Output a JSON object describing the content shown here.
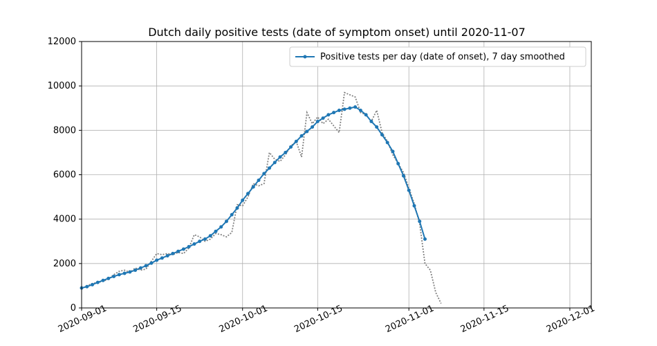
{
  "chart_data": {
    "type": "line",
    "title": "Dutch daily positive tests (date of symptom onset) until 2020-11-07",
    "x": [
      "2020-09-01",
      "2020-09-02",
      "2020-09-03",
      "2020-09-04",
      "2020-09-05",
      "2020-09-06",
      "2020-09-07",
      "2020-09-08",
      "2020-09-09",
      "2020-09-10",
      "2020-09-11",
      "2020-09-12",
      "2020-09-13",
      "2020-09-14",
      "2020-09-15",
      "2020-09-16",
      "2020-09-17",
      "2020-09-18",
      "2020-09-19",
      "2020-09-20",
      "2020-09-21",
      "2020-09-22",
      "2020-09-23",
      "2020-09-24",
      "2020-09-25",
      "2020-09-26",
      "2020-09-27",
      "2020-09-28",
      "2020-09-29",
      "2020-09-30",
      "2020-10-01",
      "2020-10-02",
      "2020-10-03",
      "2020-10-04",
      "2020-10-05",
      "2020-10-06",
      "2020-10-07",
      "2020-10-08",
      "2020-10-09",
      "2020-10-10",
      "2020-10-11",
      "2020-10-12",
      "2020-10-13",
      "2020-10-14",
      "2020-10-15",
      "2020-10-16",
      "2020-10-17",
      "2020-10-18",
      "2020-10-19",
      "2020-10-20",
      "2020-10-21",
      "2020-10-22",
      "2020-10-23",
      "2020-10-24",
      "2020-10-25",
      "2020-10-26",
      "2020-10-27",
      "2020-10-28",
      "2020-10-29",
      "2020-10-30",
      "2020-10-31",
      "2020-11-01",
      "2020-11-02",
      "2020-11-03",
      "2020-11-04",
      "2020-11-05",
      "2020-11-06",
      "2020-11-07"
    ],
    "series": [
      {
        "name": "Positive tests per day (date of onset), 7 day smoothed",
        "color": "#1f77b4",
        "style": "solid-markers",
        "values": [
          900,
          960,
          1050,
          1150,
          1240,
          1330,
          1420,
          1500,
          1560,
          1620,
          1700,
          1800,
          1900,
          2020,
          2150,
          2250,
          2350,
          2450,
          2550,
          2650,
          2760,
          2880,
          3000,
          3100,
          3250,
          3450,
          3650,
          3900,
          4200,
          4500,
          4850,
          5150,
          5450,
          5750,
          6050,
          6300,
          6550,
          6800,
          7000,
          7250,
          7500,
          7750,
          7950,
          8150,
          8400,
          8550,
          8700,
          8800,
          8900,
          8950,
          9000,
          9050,
          8900,
          8700,
          8400,
          8150,
          7800,
          7450,
          7050,
          6500,
          5950,
          5300,
          4600,
          3900,
          3100,
          null,
          null,
          null
        ]
      },
      {
        "color": "#808080",
        "style": "dotted",
        "values": [
          850,
          1000,
          1100,
          1150,
          1200,
          1300,
          1500,
          1650,
          1700,
          1600,
          1800,
          1700,
          1750,
          2100,
          2450,
          2400,
          2450,
          2400,
          2500,
          2450,
          2700,
          3300,
          3200,
          3000,
          3100,
          3350,
          3300,
          3200,
          3400,
          4650,
          4600,
          5000,
          5600,
          5500,
          5600,
          7000,
          6700,
          6600,
          6900,
          7300,
          7500,
          6800,
          8800,
          8300,
          8600,
          8300,
          8500,
          8200,
          7900,
          9700,
          9600,
          9500,
          8800,
          8700,
          8400,
          8900,
          7900,
          7500,
          6900,
          6500,
          6100,
          5400,
          4700,
          3800,
          2000,
          1700,
          700,
          200
        ]
      }
    ],
    "xlim": [
      "2020-09-01",
      "2020-12-05"
    ],
    "xticks": [
      "2020-09-01",
      "2020-09-15",
      "2020-10-01",
      "2020-10-15",
      "2020-11-01",
      "2020-11-15",
      "2020-12-01"
    ],
    "ylim": [
      0,
      12000
    ],
    "yticks": [
      0,
      2000,
      4000,
      6000,
      8000,
      10000,
      12000
    ],
    "grid": true,
    "legend": "upper right"
  }
}
